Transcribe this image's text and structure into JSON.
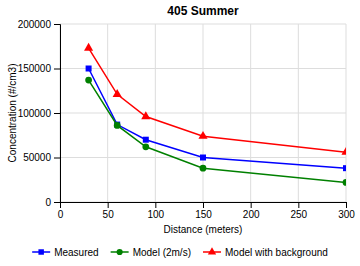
{
  "chart_data": {
    "type": "line",
    "title": "405 Summer",
    "xlabel": "Distance (meters)",
    "ylabel": "Concentration (#/cm3)",
    "x": [
      30,
      60,
      90,
      150,
      300
    ],
    "series": [
      {
        "name": "Measured",
        "color": "blue",
        "marker": "square",
        "values": [
          150000,
          87000,
          70000,
          50000,
          38000
        ]
      },
      {
        "name": "Model (2m/s)",
        "color": "green",
        "marker": "circle",
        "values": [
          137000,
          86000,
          62000,
          38000,
          22000
        ]
      },
      {
        "name": "Model with background",
        "color": "red",
        "marker": "triangle",
        "values": [
          173000,
          121000,
          96000,
          74000,
          56000
        ]
      }
    ],
    "xlim": [
      0,
      300
    ],
    "ylim": [
      0,
      200000
    ],
    "xticks": [
      0,
      50,
      100,
      150,
      200,
      250,
      300
    ],
    "yticks": [
      0,
      50000,
      100000,
      150000,
      200000
    ],
    "grid": true,
    "legend": "bottom"
  }
}
